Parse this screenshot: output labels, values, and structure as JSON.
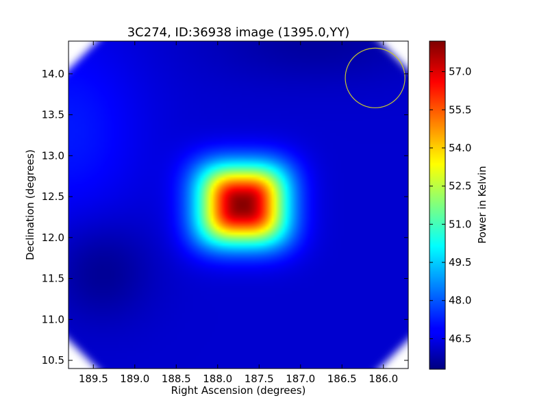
{
  "chart_data": {
    "type": "heatmap",
    "title": "3C274, ID:36938 image (1395.0,YY)",
    "xlabel": "Right Ascension (degrees)",
    "ylabel": "Declination (degrees)",
    "xlim": [
      189.8,
      185.7
    ],
    "ylim": [
      10.4,
      14.4
    ],
    "x_ticks": [
      189.5,
      189.0,
      188.5,
      188.0,
      187.5,
      187.0,
      186.5,
      186.0
    ],
    "x_tick_labels": [
      "189.5",
      "189.0",
      "188.5",
      "188.0",
      "187.5",
      "187.0",
      "186.5",
      "186.0"
    ],
    "y_ticks": [
      10.5,
      11.0,
      11.5,
      12.0,
      12.5,
      13.0,
      13.5,
      14.0
    ],
    "y_tick_labels": [
      "10.5",
      "11.0",
      "11.5",
      "12.0",
      "12.5",
      "13.0",
      "13.5",
      "14.0"
    ],
    "grid": false,
    "colormap": "jet",
    "colorbar": {
      "label": "Power in Kelvin",
      "range": [
        45.3,
        58.2
      ],
      "ticks": [
        46.5,
        48.0,
        49.5,
        51.0,
        52.5,
        54.0,
        55.5,
        57.0
      ],
      "tick_labels": [
        "46.5",
        "48.0",
        "49.5",
        "51.0",
        "52.5",
        "54.0",
        "55.5",
        "57.0"
      ]
    },
    "source": {
      "ra": 187.7,
      "dec": 12.4,
      "peak_kelvin": 58.1
    },
    "background_kelvin": 46.3,
    "beam_circle": {
      "ra": 186.1,
      "dec": 13.95,
      "radius_deg": 0.36,
      "color": "#c8c832"
    }
  }
}
